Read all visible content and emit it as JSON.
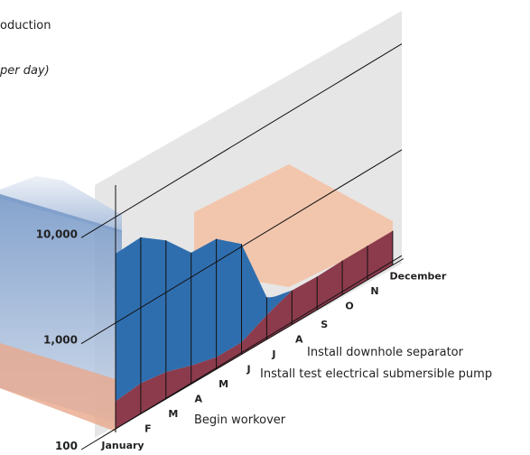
{
  "chart_data": {
    "type": "area",
    "title": "oduction",
    "subtitle": "per day)",
    "categories": [
      "January",
      "F",
      "M",
      "A",
      "M",
      "J",
      "J",
      "A",
      "S",
      "O",
      "N",
      "December"
    ],
    "yscale": "log",
    "ylim": [
      100,
      20000
    ],
    "yticks": [
      {
        "value": 100,
        "label": "100"
      },
      {
        "value": 1000,
        "label": "1,000"
      },
      {
        "value": 10000,
        "label": "10,000"
      }
    ],
    "series": [
      {
        "name": null,
        "color": "#2f6eae",
        "values": [
          4500,
          4650,
          3150,
          1740,
          1700,
          1100,
          250,
          null,
          null,
          null,
          null,
          null
        ]
      },
      {
        "name": null,
        "color": "#8c3b4c",
        "values": [
          182,
          195,
          180,
          150,
          130,
          130,
          170,
          210,
          205,
          210,
          210,
          210
        ]
      }
    ],
    "annotations": [
      "Begin workover",
      "Install test electrical submersible pump",
      "Install downhole separator"
    ]
  }
}
